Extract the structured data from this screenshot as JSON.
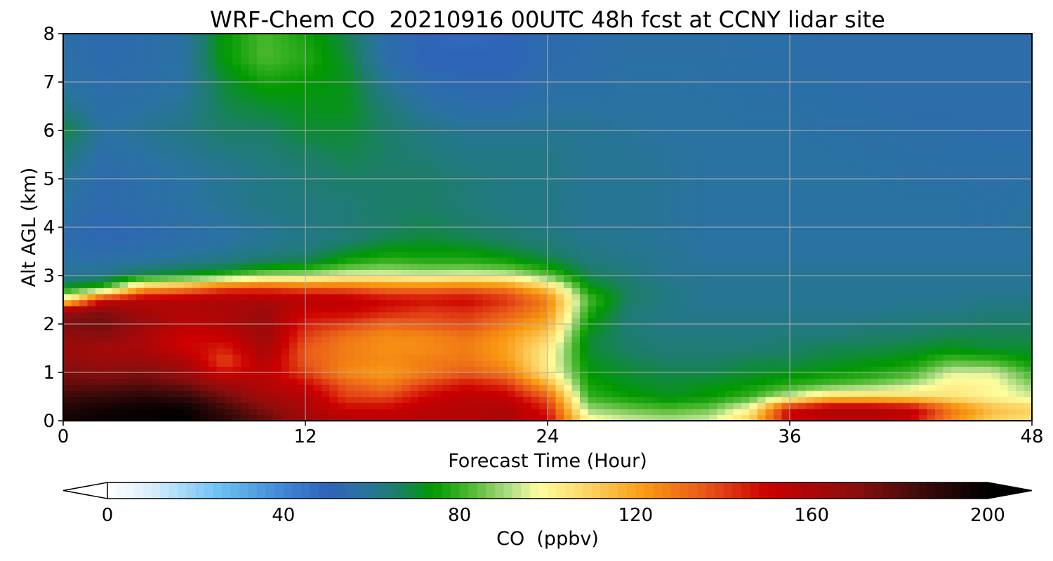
{
  "chart_data": {
    "type": "heatmap",
    "title": "WRF-Chem CO  20210916 00UTC 48h fcst at CCNY lidar site",
    "xlabel": "Forecast Time (Hour)",
    "ylabel": "Alt AGL (km)",
    "xlim": [
      0,
      48
    ],
    "ylim": [
      0,
      8
    ],
    "xticks": [
      0,
      12,
      24,
      36,
      48
    ],
    "yticks": [
      0,
      1,
      2,
      3,
      4,
      5,
      6,
      7,
      8
    ],
    "grid": true,
    "x": [
      0,
      2,
      4,
      6,
      8,
      10,
      12,
      14,
      16,
      18,
      20,
      22,
      24,
      26,
      28,
      30,
      32,
      34,
      36,
      38,
      40,
      42,
      44,
      46,
      48
    ],
    "y": [
      0,
      0.25,
      0.5,
      0.75,
      1.0,
      1.25,
      1.5,
      1.75,
      2.0,
      2.25,
      2.5,
      2.75,
      3.0,
      3.25,
      3.5,
      3.75,
      4.0,
      4.5,
      5.0,
      5.5,
      6.0,
      6.5,
      7.0,
      7.5,
      8.0
    ],
    "z": [
      [
        195,
        198,
        198,
        200,
        190,
        178,
        165,
        160,
        158,
        160,
        158,
        162,
        150,
        100,
        95,
        92,
        95,
        110,
        150,
        155,
        155,
        150,
        125,
        110,
        105
      ],
      [
        192,
        196,
        198,
        198,
        185,
        172,
        160,
        150,
        150,
        155,
        158,
        160,
        145,
        90,
        85,
        82,
        85,
        100,
        150,
        160,
        160,
        155,
        130,
        115,
        110
      ],
      [
        185,
        188,
        190,
        188,
        175,
        162,
        158,
        140,
        138,
        150,
        155,
        152,
        135,
        80,
        75,
        72,
        74,
        80,
        95,
        110,
        110,
        108,
        105,
        100,
        95
      ],
      [
        178,
        178,
        180,
        175,
        165,
        158,
        150,
        135,
        128,
        140,
        148,
        142,
        118,
        76,
        72,
        70,
        72,
        74,
        78,
        82,
        86,
        92,
        102,
        100,
        88
      ],
      [
        172,
        170,
        172,
        165,
        148,
        155,
        140,
        125,
        122,
        128,
        135,
        128,
        104,
        74,
        70,
        68,
        68,
        70,
        72,
        74,
        76,
        80,
        95,
        95,
        80
      ],
      [
        168,
        165,
        165,
        160,
        138,
        158,
        135,
        128,
        125,
        128,
        130,
        122,
        102,
        72,
        68,
        66,
        66,
        68,
        68,
        70,
        72,
        74,
        82,
        80,
        74
      ],
      [
        165,
        162,
        160,
        150,
        145,
        162,
        135,
        128,
        124,
        125,
        128,
        120,
        104,
        70,
        66,
        64,
        64,
        64,
        66,
        68,
        68,
        70,
        72,
        70,
        70
      ],
      [
        168,
        170,
        160,
        150,
        152,
        165,
        140,
        130,
        125,
        126,
        130,
        122,
        110,
        71,
        65,
        63,
        63,
        63,
        64,
        64,
        66,
        66,
        68,
        68,
        68
      ],
      [
        172,
        175,
        165,
        155,
        158,
        165,
        145,
        140,
        132,
        135,
        138,
        128,
        118,
        74,
        64,
        62,
        62,
        62,
        62,
        62,
        63,
        64,
        65,
        66,
        66
      ],
      [
        168,
        172,
        162,
        158,
        160,
        165,
        150,
        150,
        145,
        140,
        142,
        135,
        124,
        78,
        64,
        62,
        61,
        61,
        61,
        61,
        61,
        62,
        62,
        64,
        64
      ],
      [
        100,
        150,
        158,
        158,
        160,
        160,
        158,
        155,
        150,
        148,
        150,
        142,
        128,
        82,
        66,
        62,
        60,
        60,
        60,
        60,
        60,
        60,
        60,
        62,
        62
      ],
      [
        72,
        80,
        118,
        125,
        138,
        140,
        135,
        135,
        130,
        130,
        132,
        128,
        112,
        74,
        66,
        62,
        60,
        60,
        60,
        60,
        60,
        60,
        60,
        60,
        60
      ],
      [
        60,
        62,
        70,
        74,
        80,
        90,
        92,
        98,
        98,
        96,
        98,
        96,
        84,
        68,
        64,
        60,
        60,
        60,
        60,
        60,
        60,
        60,
        60,
        60,
        60
      ],
      [
        58,
        58,
        60,
        62,
        64,
        68,
        70,
        78,
        82,
        80,
        80,
        78,
        72,
        64,
        62,
        60,
        59,
        59,
        59,
        59,
        59,
        59,
        59,
        59,
        59
      ],
      [
        56,
        54,
        56,
        58,
        60,
        62,
        64,
        70,
        74,
        74,
        74,
        70,
        66,
        62,
        61,
        60,
        58,
        58,
        58,
        58,
        58,
        58,
        58,
        58,
        58
      ],
      [
        54,
        52,
        54,
        56,
        58,
        60,
        62,
        64,
        68,
        70,
        68,
        66,
        64,
        61,
        60,
        59,
        58,
        58,
        58,
        58,
        58,
        58,
        58,
        58,
        58
      ],
      [
        56,
        52,
        54,
        56,
        58,
        60,
        62,
        64,
        66,
        68,
        66,
        64,
        62,
        60,
        60,
        59,
        58,
        58,
        58,
        58,
        58,
        58,
        58,
        57,
        60
      ],
      [
        58,
        54,
        56,
        58,
        60,
        62,
        63,
        64,
        66,
        66,
        64,
        62,
        62,
        60,
        60,
        59,
        58,
        58,
        58,
        58,
        58,
        58,
        58,
        57,
        58
      ],
      [
        60,
        54,
        56,
        58,
        60,
        62,
        64,
        66,
        66,
        66,
        64,
        62,
        62,
        60,
        60,
        59,
        58,
        58,
        58,
        58,
        58,
        57,
        57,
        56,
        57
      ],
      [
        64,
        56,
        58,
        60,
        62,
        64,
        66,
        68,
        66,
        64,
        62,
        62,
        62,
        60,
        60,
        59,
        58,
        58,
        58,
        58,
        57,
        57,
        56,
        56,
        56
      ],
      [
        70,
        58,
        60,
        62,
        66,
        66,
        70,
        70,
        66,
        62,
        60,
        60,
        60,
        60,
        59,
        58,
        58,
        58,
        58,
        57,
        57,
        56,
        56,
        55,
        55
      ],
      [
        62,
        56,
        58,
        60,
        68,
        70,
        72,
        72,
        64,
        58,
        56,
        56,
        58,
        58,
        58,
        58,
        58,
        57,
        57,
        56,
        56,
        55,
        55,
        55,
        55
      ],
      [
        58,
        55,
        56,
        58,
        70,
        76,
        74,
        72,
        60,
        54,
        52,
        52,
        56,
        56,
        58,
        58,
        57,
        57,
        56,
        56,
        55,
        55,
        55,
        55,
        55
      ],
      [
        56,
        54,
        55,
        58,
        74,
        82,
        78,
        70,
        56,
        50,
        50,
        50,
        54,
        55,
        57,
        57,
        57,
        56,
        56,
        55,
        55,
        55,
        55,
        55,
        55
      ],
      [
        56,
        54,
        55,
        58,
        74,
        82,
        76,
        68,
        55,
        50,
        48,
        50,
        54,
        55,
        57,
        57,
        57,
        56,
        56,
        55,
        55,
        55,
        55,
        55,
        55
      ]
    ],
    "colorbar": {
      "label": "CO  (ppbv)",
      "min": 0,
      "max": 200,
      "ticks": [
        0,
        40,
        80,
        120,
        160,
        200
      ],
      "extend": "both",
      "stops": [
        {
          "v": 0,
          "c": "#ffffff"
        },
        {
          "v": 10,
          "c": "#d8eefc"
        },
        {
          "v": 25,
          "c": "#6ec3f5"
        },
        {
          "v": 42,
          "c": "#3a7fd0"
        },
        {
          "v": 50,
          "c": "#2f64b8"
        },
        {
          "v": 58,
          "c": "#2a72a2"
        },
        {
          "v": 66,
          "c": "#1c7e68"
        },
        {
          "v": 74,
          "c": "#009900"
        },
        {
          "v": 82,
          "c": "#4ab82e"
        },
        {
          "v": 92,
          "c": "#b5e08a"
        },
        {
          "v": 98,
          "c": "#ffffa0"
        },
        {
          "v": 110,
          "c": "#fcd060"
        },
        {
          "v": 122,
          "c": "#f99a12"
        },
        {
          "v": 136,
          "c": "#e8561a"
        },
        {
          "v": 150,
          "c": "#cc0000"
        },
        {
          "v": 170,
          "c": "#8a0e0e"
        },
        {
          "v": 185,
          "c": "#3d0a0a"
        },
        {
          "v": 200,
          "c": "#000000"
        }
      ]
    }
  }
}
